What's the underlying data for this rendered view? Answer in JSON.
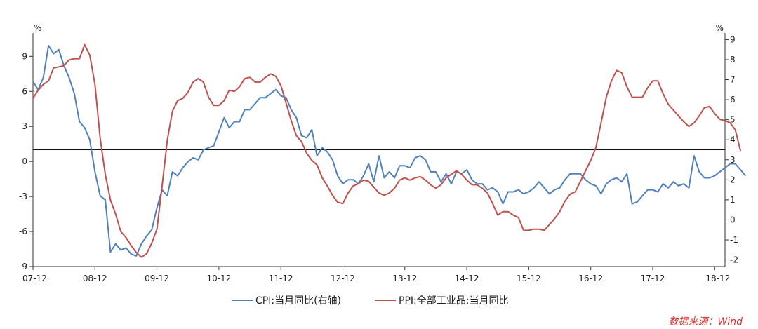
{
  "chart_data": {
    "type": "line",
    "title": "",
    "left_axis": {
      "unit": "%",
      "range": [
        -9,
        11
      ],
      "ticks": [
        -9,
        -6,
        -3,
        0,
        3,
        6,
        9
      ]
    },
    "right_axis": {
      "unit": "%",
      "range": [
        -2.33,
        9.33
      ],
      "ticks": [
        -2,
        -1,
        0,
        1,
        2,
        3,
        4,
        5,
        6,
        7,
        8,
        9
      ]
    },
    "x_tick_labels": [
      "07-12",
      "08-12",
      "09-12",
      "10-12",
      "11-12",
      "12-12",
      "13-12",
      "14-12",
      "15-12",
      "16-12",
      "17-12",
      "18-12"
    ],
    "reference_line": {
      "axis": "left",
      "value": 1.0
    },
    "series": [
      {
        "name": "CPI:当月同比(右轴)",
        "axis": "right",
        "color": "#4f81bd",
        "points": [
          [
            0,
            6.9
          ],
          [
            1,
            6.5
          ],
          [
            2,
            7.1
          ],
          [
            3,
            8.7
          ],
          [
            4,
            8.3
          ],
          [
            5,
            8.5
          ],
          [
            6,
            7.7
          ],
          [
            7,
            7.1
          ],
          [
            8,
            6.3
          ],
          [
            9,
            4.9
          ],
          [
            10,
            4.6
          ],
          [
            11,
            4.0
          ],
          [
            12,
            2.4
          ],
          [
            13,
            1.2
          ],
          [
            14,
            1.0
          ],
          [
            15,
            -1.6
          ],
          [
            16,
            -1.2
          ],
          [
            17,
            -1.5
          ],
          [
            18,
            -1.4
          ],
          [
            19,
            -1.7
          ],
          [
            20,
            -1.8
          ],
          [
            21,
            -1.2
          ],
          [
            22,
            -0.8
          ],
          [
            23,
            -0.5
          ],
          [
            24,
            0.6
          ],
          [
            25,
            1.5
          ],
          [
            26,
            1.2
          ],
          [
            27,
            2.4
          ],
          [
            28,
            2.2
          ],
          [
            29,
            2.6
          ],
          [
            30,
            2.9
          ],
          [
            31,
            3.1
          ],
          [
            32,
            3.0
          ],
          [
            33,
            3.5
          ],
          [
            34,
            3.6
          ],
          [
            35,
            3.7
          ],
          [
            36,
            4.4
          ],
          [
            37,
            5.1
          ],
          [
            38,
            4.6
          ],
          [
            39,
            4.9
          ],
          [
            40,
            4.9
          ],
          [
            41,
            5.5
          ],
          [
            42,
            5.5
          ],
          [
            43,
            5.8
          ],
          [
            44,
            6.1
          ],
          [
            45,
            6.1
          ],
          [
            46,
            6.3
          ],
          [
            47,
            6.5
          ],
          [
            48,
            6.2
          ],
          [
            49,
            6.1
          ],
          [
            50,
            5.5
          ],
          [
            51,
            5.1
          ],
          [
            52,
            4.2
          ],
          [
            53,
            4.1
          ],
          [
            54,
            4.5
          ],
          [
            55,
            3.2
          ],
          [
            56,
            3.6
          ],
          [
            57,
            3.4
          ],
          [
            58,
            3.0
          ],
          [
            59,
            2.2
          ],
          [
            60,
            1.8
          ],
          [
            61,
            2.0
          ],
          [
            62,
            2.0
          ],
          [
            63,
            1.8
          ],
          [
            64,
            2.2
          ],
          [
            65,
            2.8
          ],
          [
            66,
            1.9
          ],
          [
            67,
            3.2
          ],
          [
            68,
            2.1
          ],
          [
            69,
            2.4
          ],
          [
            70,
            2.1
          ],
          [
            71,
            2.7
          ],
          [
            72,
            2.7
          ],
          [
            73,
            2.6
          ],
          [
            74,
            3.1
          ],
          [
            75,
            3.2
          ],
          [
            76,
            3.0
          ],
          [
            77,
            2.4
          ],
          [
            78,
            2.4
          ],
          [
            79,
            1.9
          ],
          [
            80,
            2.3
          ],
          [
            81,
            1.8
          ],
          [
            82,
            2.4
          ],
          [
            83,
            2.3
          ],
          [
            84,
            2.5
          ],
          [
            85,
            2.0
          ],
          [
            86,
            1.8
          ],
          [
            87,
            1.8
          ],
          [
            88,
            1.5
          ],
          [
            89,
            1.6
          ],
          [
            90,
            1.4
          ],
          [
            91,
            0.8
          ],
          [
            92,
            1.4
          ],
          [
            93,
            1.4
          ],
          [
            94,
            1.5
          ],
          [
            95,
            1.3
          ],
          [
            96,
            1.4
          ],
          [
            97,
            1.6
          ],
          [
            98,
            1.9
          ],
          [
            99,
            1.6
          ],
          [
            100,
            1.3
          ],
          [
            101,
            1.5
          ],
          [
            102,
            1.6
          ],
          [
            103,
            2.0
          ],
          [
            104,
            2.3
          ],
          [
            105,
            2.3
          ],
          [
            106,
            2.3
          ],
          [
            107,
            2.0
          ],
          [
            108,
            1.8
          ],
          [
            109,
            1.7
          ],
          [
            110,
            1.3
          ],
          [
            111,
            1.8
          ],
          [
            112,
            2.0
          ],
          [
            113,
            2.1
          ],
          [
            114,
            1.9
          ],
          [
            115,
            2.3
          ],
          [
            116,
            0.8
          ],
          [
            117,
            0.9
          ],
          [
            118,
            1.2
          ],
          [
            119,
            1.5
          ],
          [
            120,
            1.5
          ],
          [
            121,
            1.4
          ],
          [
            122,
            1.8
          ],
          [
            123,
            1.6
          ],
          [
            124,
            1.9
          ],
          [
            125,
            1.7
          ],
          [
            126,
            1.8
          ],
          [
            127,
            1.6
          ],
          [
            128,
            3.2
          ],
          [
            129,
            2.4
          ],
          [
            130,
            2.1
          ],
          [
            131,
            2.1
          ],
          [
            132,
            2.2
          ],
          [
            133,
            2.4
          ],
          [
            134,
            2.6
          ],
          [
            135,
            2.8
          ],
          [
            136,
            2.8
          ],
          [
            137,
            2.5
          ],
          [
            138,
            2.2
          ]
        ]
      },
      {
        "name": "PPI:全部工业品:当月同比",
        "axis": "left",
        "color": "#c0504d",
        "points": [
          [
            0,
            5.4
          ],
          [
            1,
            6.1
          ],
          [
            2,
            6.6
          ],
          [
            3,
            6.9
          ],
          [
            4,
            8.0
          ],
          [
            5,
            8.1
          ],
          [
            6,
            8.2
          ],
          [
            7,
            8.7
          ],
          [
            8,
            8.8
          ],
          [
            9,
            8.8
          ],
          [
            10,
            10.0
          ],
          [
            11,
            9.1
          ],
          [
            12,
            6.6
          ],
          [
            13,
            2.0
          ],
          [
            14,
            -1.1
          ],
          [
            15,
            -3.3
          ],
          [
            16,
            -4.5
          ],
          [
            17,
            -6.0
          ],
          [
            18,
            -6.5
          ],
          [
            19,
            -7.2
          ],
          [
            20,
            -7.8
          ],
          [
            21,
            -8.2
          ],
          [
            22,
            -7.9
          ],
          [
            23,
            -7.0
          ],
          [
            24,
            -5.8
          ],
          [
            25,
            -2.1
          ],
          [
            26,
            1.8
          ],
          [
            27,
            4.3
          ],
          [
            28,
            5.2
          ],
          [
            29,
            5.4
          ],
          [
            30,
            5.9
          ],
          [
            31,
            6.8
          ],
          [
            32,
            7.1
          ],
          [
            33,
            6.8
          ],
          [
            34,
            5.5
          ],
          [
            35,
            4.8
          ],
          [
            36,
            4.8
          ],
          [
            37,
            5.2
          ],
          [
            38,
            6.1
          ],
          [
            39,
            6.0
          ],
          [
            40,
            6.4
          ],
          [
            41,
            7.1
          ],
          [
            42,
            7.2
          ],
          [
            43,
            6.8
          ],
          [
            44,
            6.8
          ],
          [
            45,
            7.2
          ],
          [
            46,
            7.5
          ],
          [
            47,
            7.3
          ],
          [
            48,
            6.5
          ],
          [
            49,
            5.0
          ],
          [
            50,
            3.5
          ],
          [
            51,
            2.2
          ],
          [
            52,
            1.7
          ],
          [
            53,
            0.7
          ],
          [
            54,
            0.1
          ],
          [
            55,
            -0.3
          ],
          [
            56,
            -1.4
          ],
          [
            57,
            -2.1
          ],
          [
            58,
            -2.9
          ],
          [
            59,
            -3.5
          ],
          [
            60,
            -3.6
          ],
          [
            61,
            -2.7
          ],
          [
            62,
            -2.1
          ],
          [
            63,
            -1.9
          ],
          [
            64,
            -1.6
          ],
          [
            65,
            -1.7
          ],
          [
            66,
            -2.2
          ],
          [
            67,
            -2.7
          ],
          [
            68,
            -2.9
          ],
          [
            69,
            -2.7
          ],
          [
            70,
            -2.3
          ],
          [
            71,
            -1.6
          ],
          [
            72,
            -1.4
          ],
          [
            73,
            -1.6
          ],
          [
            74,
            -1.4
          ],
          [
            75,
            -1.3
          ],
          [
            76,
            -1.6
          ],
          [
            77,
            -2.0
          ],
          [
            78,
            -2.3
          ],
          [
            79,
            -2.0
          ],
          [
            80,
            -1.4
          ],
          [
            81,
            -1.1
          ],
          [
            82,
            -0.8
          ],
          [
            83,
            -1.1
          ],
          [
            84,
            -1.6
          ],
          [
            85,
            -2.0
          ],
          [
            86,
            -2.0
          ],
          [
            87,
            -2.3
          ],
          [
            88,
            -2.7
          ],
          [
            89,
            -3.6
          ],
          [
            90,
            -4.6
          ],
          [
            91,
            -4.3
          ],
          [
            92,
            -4.3
          ],
          [
            93,
            -4.6
          ],
          [
            94,
            -4.8
          ],
          [
            95,
            -5.9
          ],
          [
            96,
            -5.9
          ],
          [
            97,
            -5.8
          ],
          [
            98,
            -5.8
          ],
          [
            99,
            -5.9
          ],
          [
            100,
            -5.4
          ],
          [
            101,
            -4.9
          ],
          [
            102,
            -4.3
          ],
          [
            103,
            -3.4
          ],
          [
            104,
            -2.8
          ],
          [
            105,
            -2.6
          ],
          [
            106,
            -1.7
          ],
          [
            107,
            -0.8
          ],
          [
            108,
            0.1
          ],
          [
            109,
            1.2
          ],
          [
            110,
            3.3
          ],
          [
            111,
            5.5
          ],
          [
            112,
            6.9
          ],
          [
            113,
            7.8
          ],
          [
            114,
            7.6
          ],
          [
            115,
            6.4
          ],
          [
            116,
            5.5
          ],
          [
            117,
            5.5
          ],
          [
            118,
            5.5
          ],
          [
            119,
            6.3
          ],
          [
            120,
            6.9
          ],
          [
            121,
            6.9
          ],
          [
            122,
            5.8
          ],
          [
            123,
            4.9
          ],
          [
            124,
            4.4
          ],
          [
            125,
            3.9
          ],
          [
            126,
            3.4
          ],
          [
            127,
            3.0
          ],
          [
            128,
            3.3
          ],
          [
            129,
            3.9
          ],
          [
            130,
            4.6
          ],
          [
            131,
            4.7
          ],
          [
            132,
            4.1
          ],
          [
            133,
            3.6
          ],
          [
            134,
            3.5
          ],
          [
            135,
            3.3
          ],
          [
            136,
            2.7
          ],
          [
            137,
            0.9
          ]
        ]
      }
    ]
  },
  "source_note": "数据来源：Wind"
}
